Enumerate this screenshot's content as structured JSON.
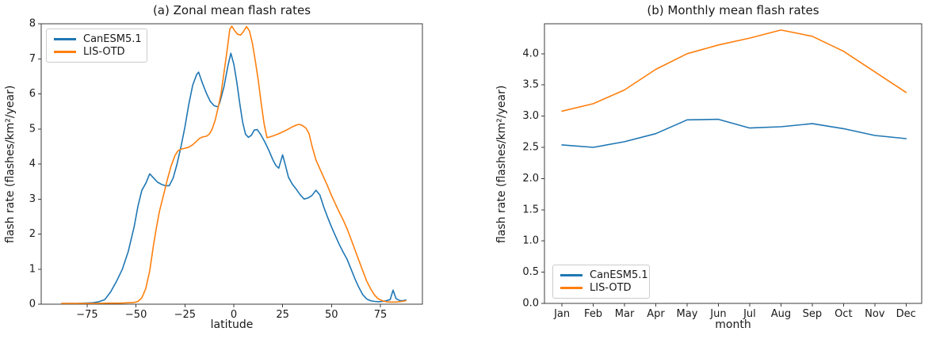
{
  "figure": {
    "background": "#ffffff",
    "frame_color": "#3c3c3c",
    "text_color": "#1a1a1a"
  },
  "chart_data": [
    {
      "id": "a",
      "type": "line",
      "title": "(a) Zonal mean flash rates",
      "xlabel": "latitude",
      "ylabel": "flash rate (flashes/km²/year)",
      "xlim": [
        -98.5,
        96.5
      ],
      "ylim": [
        0,
        8
      ],
      "grid": false,
      "legend_position": "upper-left",
      "xticks": [
        {
          "v": -75,
          "label": "−75"
        },
        {
          "v": -50,
          "label": "−50"
        },
        {
          "v": -25,
          "label": "−25"
        },
        {
          "v": 0,
          "label": "0"
        },
        {
          "v": 25,
          "label": "25"
        },
        {
          "v": 50,
          "label": "50"
        },
        {
          "v": 75,
          "label": "75"
        }
      ],
      "yticks": [
        {
          "v": 0,
          "label": "0"
        },
        {
          "v": 1,
          "label": "1"
        },
        {
          "v": 2,
          "label": "2"
        },
        {
          "v": 3,
          "label": "3"
        },
        {
          "v": 4,
          "label": "4"
        },
        {
          "v": 5,
          "label": "5"
        },
        {
          "v": 6,
          "label": "6"
        },
        {
          "v": 7,
          "label": "7"
        },
        {
          "v": 8,
          "label": "8"
        }
      ],
      "series": [
        {
          "name": "CanESM5.1",
          "color": "#1f77b4",
          "points": [
            [
              -88,
              0.02
            ],
            [
              -84,
              0.02
            ],
            [
              -80,
              0.02
            ],
            [
              -76,
              0.03
            ],
            [
              -72,
              0.04
            ],
            [
              -69,
              0.07
            ],
            [
              -66,
              0.13
            ],
            [
              -63,
              0.35
            ],
            [
              -60,
              0.65
            ],
            [
              -57,
              1.0
            ],
            [
              -54,
              1.5
            ],
            [
              -51,
              2.2
            ],
            [
              -49,
              2.8
            ],
            [
              -47,
              3.25
            ],
            [
              -45,
              3.45
            ],
            [
              -43,
              3.72
            ],
            [
              -41,
              3.6
            ],
            [
              -39,
              3.48
            ],
            [
              -37,
              3.42
            ],
            [
              -35,
              3.38
            ],
            [
              -33,
              3.38
            ],
            [
              -31,
              3.6
            ],
            [
              -29,
              4.0
            ],
            [
              -27,
              4.5
            ],
            [
              -25,
              5.05
            ],
            [
              -23,
              5.7
            ],
            [
              -21,
              6.25
            ],
            [
              -19,
              6.55
            ],
            [
              -18,
              6.62
            ],
            [
              -16,
              6.3
            ],
            [
              -14,
              6.02
            ],
            [
              -12,
              5.78
            ],
            [
              -10,
              5.66
            ],
            [
              -8,
              5.63
            ],
            [
              -7,
              5.78
            ],
            [
              -5,
              6.2
            ],
            [
              -3,
              6.8
            ],
            [
              -1.5,
              7.16
            ],
            [
              0,
              6.85
            ],
            [
              1.5,
              6.35
            ],
            [
              3,
              5.75
            ],
            [
              4.5,
              5.2
            ],
            [
              6,
              4.85
            ],
            [
              7.5,
              4.76
            ],
            [
              9,
              4.82
            ],
            [
              10.5,
              4.97
            ],
            [
              12,
              4.98
            ],
            [
              14,
              4.82
            ],
            [
              16,
              4.62
            ],
            [
              18,
              4.38
            ],
            [
              20,
              4.12
            ],
            [
              21.5,
              3.96
            ],
            [
              23,
              3.88
            ],
            [
              25,
              4.26
            ],
            [
              26.5,
              3.95
            ],
            [
              28,
              3.62
            ],
            [
              30,
              3.42
            ],
            [
              32,
              3.28
            ],
            [
              34,
              3.12
            ],
            [
              36,
              3.0
            ],
            [
              38,
              3.03
            ],
            [
              40,
              3.1
            ],
            [
              42,
              3.25
            ],
            [
              44,
              3.12
            ],
            [
              46,
              2.78
            ],
            [
              48,
              2.48
            ],
            [
              50,
              2.2
            ],
            [
              52,
              1.95
            ],
            [
              54,
              1.7
            ],
            [
              56,
              1.48
            ],
            [
              58,
              1.28
            ],
            [
              60,
              1.0
            ],
            [
              62,
              0.72
            ],
            [
              64,
              0.48
            ],
            [
              66,
              0.27
            ],
            [
              68,
              0.15
            ],
            [
              70,
              0.1
            ],
            [
              72,
              0.08
            ],
            [
              74,
              0.07
            ],
            [
              76,
              0.08
            ],
            [
              78,
              0.1
            ],
            [
              80,
              0.13
            ],
            [
              81.5,
              0.4
            ],
            [
              83,
              0.16
            ],
            [
              85,
              0.1
            ],
            [
              86.5,
              0.1
            ],
            [
              88,
              0.12
            ]
          ]
        },
        {
          "name": "LIS-OTD",
          "color": "#ff7f0e",
          "points": [
            [
              -88,
              0.02
            ],
            [
              -80,
              0.02
            ],
            [
              -72,
              0.02
            ],
            [
              -64,
              0.03
            ],
            [
              -58,
              0.03
            ],
            [
              -54,
              0.04
            ],
            [
              -51,
              0.05
            ],
            [
              -49,
              0.08
            ],
            [
              -47,
              0.18
            ],
            [
              -45,
              0.45
            ],
            [
              -43,
              0.95
            ],
            [
              -41,
              1.7
            ],
            [
              -39.5,
              2.2
            ],
            [
              -38,
              2.65
            ],
            [
              -36,
              3.1
            ],
            [
              -34,
              3.55
            ],
            [
              -32,
              3.95
            ],
            [
              -30,
              4.25
            ],
            [
              -28.5,
              4.38
            ],
            [
              -27,
              4.42
            ],
            [
              -25,
              4.45
            ],
            [
              -23,
              4.48
            ],
            [
              -21,
              4.55
            ],
            [
              -19,
              4.65
            ],
            [
              -17.5,
              4.73
            ],
            [
              -16,
              4.77
            ],
            [
              -14,
              4.79
            ],
            [
              -12.5,
              4.85
            ],
            [
              -11,
              5.0
            ],
            [
              -9.5,
              5.25
            ],
            [
              -8,
              5.6
            ],
            [
              -6.5,
              6.0
            ],
            [
              -5,
              6.6
            ],
            [
              -3.5,
              7.2
            ],
            [
              -2,
              7.85
            ],
            [
              -1,
              7.93
            ],
            [
              0.5,
              7.8
            ],
            [
              2,
              7.7
            ],
            [
              3.5,
              7.68
            ],
            [
              5,
              7.78
            ],
            [
              6.5,
              7.92
            ],
            [
              8,
              7.8
            ],
            [
              9.5,
              7.45
            ],
            [
              11,
              6.95
            ],
            [
              12.5,
              6.4
            ],
            [
              14,
              5.75
            ],
            [
              15.5,
              5.15
            ],
            [
              17,
              4.75
            ],
            [
              18.5,
              4.77
            ],
            [
              20,
              4.8
            ],
            [
              22,
              4.84
            ],
            [
              24,
              4.89
            ],
            [
              26,
              4.94
            ],
            [
              28,
              5.0
            ],
            [
              30,
              5.06
            ],
            [
              32,
              5.11
            ],
            [
              33.5,
              5.13
            ],
            [
              35,
              5.1
            ],
            [
              37,
              5.02
            ],
            [
              38.5,
              4.87
            ],
            [
              40,
              4.52
            ],
            [
              42,
              4.12
            ],
            [
              44,
              3.87
            ],
            [
              46,
              3.62
            ],
            [
              48,
              3.37
            ],
            [
              50,
              3.1
            ],
            [
              52,
              2.86
            ],
            [
              54,
              2.62
            ],
            [
              56,
              2.4
            ],
            [
              58,
              2.15
            ],
            [
              60,
              1.85
            ],
            [
              62,
              1.55
            ],
            [
              64,
              1.25
            ],
            [
              66,
              0.95
            ],
            [
              68,
              0.66
            ],
            [
              70,
              0.44
            ],
            [
              72,
              0.26
            ],
            [
              74,
              0.15
            ],
            [
              76,
              0.1
            ],
            [
              78,
              0.07
            ],
            [
              80,
              0.06
            ],
            [
              83,
              0.06
            ],
            [
              86,
              0.08
            ],
            [
              88,
              0.1
            ]
          ]
        }
      ]
    },
    {
      "id": "b",
      "type": "line",
      "title": "(b) Monthly mean flash rates",
      "xlabel": "month",
      "ylabel": "flash rate (flashes/km²/year)",
      "categories": [
        "Jan",
        "Feb",
        "Mar",
        "Apr",
        "May",
        "Jun",
        "Jul",
        "Aug",
        "Sep",
        "Oct",
        "Nov",
        "Dec"
      ],
      "xlim": [
        -0.56,
        11.5
      ],
      "ylim": [
        0,
        4.48
      ],
      "grid": false,
      "legend_position": "lower-left",
      "yticks": [
        {
          "v": 0.0,
          "label": "0.0"
        },
        {
          "v": 0.5,
          "label": "0.5"
        },
        {
          "v": 1.0,
          "label": "1.0"
        },
        {
          "v": 1.5,
          "label": "1.5"
        },
        {
          "v": 2.0,
          "label": "2.0"
        },
        {
          "v": 2.5,
          "label": "2.5"
        },
        {
          "v": 3.0,
          "label": "3.0"
        },
        {
          "v": 3.5,
          "label": "3.5"
        },
        {
          "v": 4.0,
          "label": "4.0"
        }
      ],
      "series": [
        {
          "name": "CanESM5.1",
          "color": "#1f77b4",
          "values": [
            2.54,
            2.5,
            2.59,
            2.72,
            2.94,
            2.95,
            2.81,
            2.83,
            2.88,
            2.8,
            2.69,
            2.64
          ]
        },
        {
          "name": "LIS-OTD",
          "color": "#ff7f0e",
          "values": [
            3.08,
            3.2,
            3.42,
            3.75,
            4.0,
            4.14,
            4.25,
            4.38,
            4.28,
            4.04,
            3.71,
            3.38
          ]
        }
      ]
    }
  ]
}
